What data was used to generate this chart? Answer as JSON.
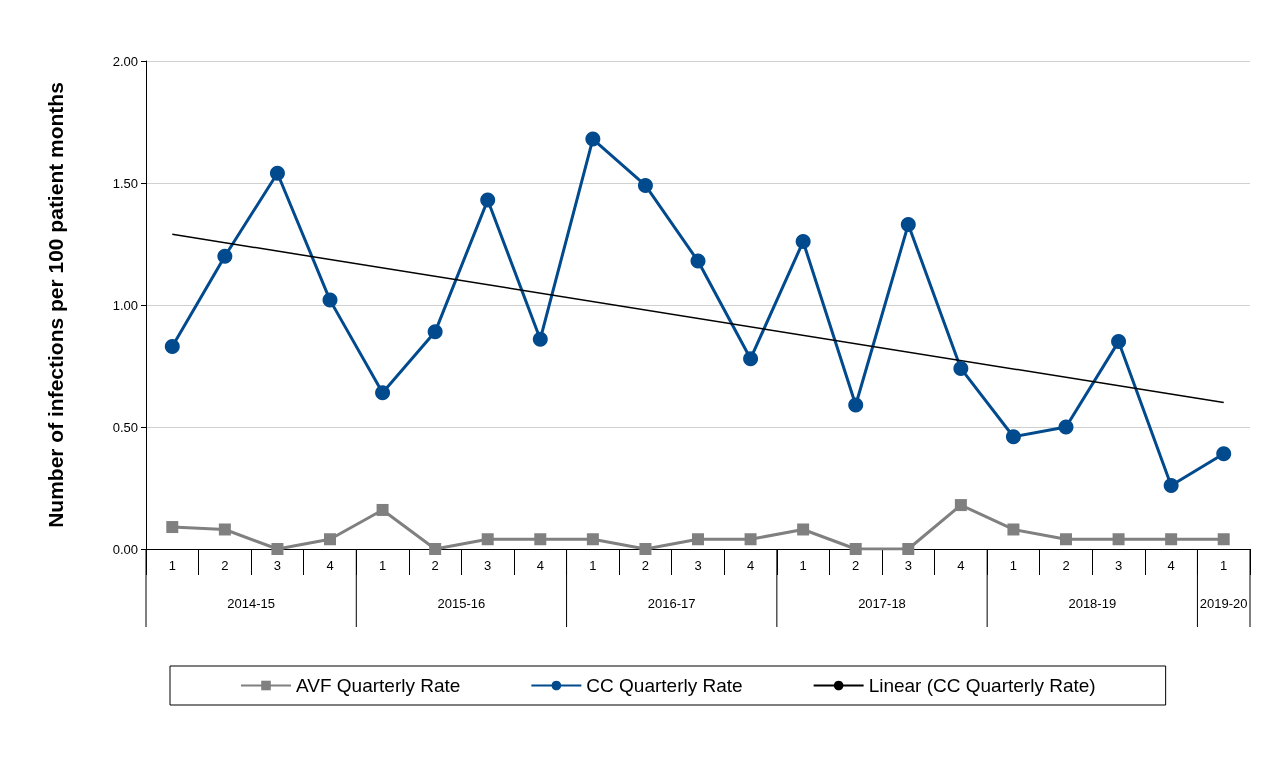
{
  "chart_data": {
    "type": "line",
    "ylabel": "Number of infections per 100 patient months",
    "categories": [
      "1",
      "2",
      "3",
      "4",
      "1",
      "2",
      "3",
      "4",
      "1",
      "2",
      "3",
      "4",
      "1",
      "2",
      "3",
      "4",
      "1",
      "2",
      "3",
      "4",
      "1"
    ],
    "annotations": [
      "2014-15",
      "2015-16",
      "2016-17",
      "2017-18",
      "2018-19",
      "2019-20"
    ],
    "series": [
      {
        "name": "AVF Quarterly Rate",
        "color": "#808080",
        "marker": "square",
        "values": [
          0.09,
          0.08,
          0.0,
          0.04,
          0.16,
          0.0,
          0.04,
          0.04,
          0.04,
          0.0,
          0.04,
          0.04,
          0.08,
          0.0,
          0.0,
          0.18,
          0.08,
          0.04,
          0.04,
          0.04,
          0.04
        ]
      },
      {
        "name": "CC Quarterly Rate",
        "color": "#004a8d",
        "marker": "circle",
        "values": [
          0.83,
          1.2,
          1.54,
          1.02,
          0.64,
          0.89,
          1.43,
          0.86,
          1.68,
          1.49,
          1.18,
          0.78,
          1.26,
          0.59,
          1.33,
          0.74,
          0.46,
          0.5,
          0.85,
          0.26,
          0.39
        ]
      },
      {
        "name": "Linear (CC Quarterly Rate)",
        "color": "#000000",
        "marker": "none",
        "values": [
          1.29,
          null,
          null,
          null,
          null,
          null,
          null,
          null,
          null,
          null,
          null,
          null,
          null,
          null,
          null,
          null,
          null,
          null,
          null,
          null,
          0.6
        ]
      }
    ],
    "ylim": [
      0,
      2
    ],
    "yticks": [
      {
        "value": 0,
        "label": "0.00"
      },
      {
        "value": 0.5,
        "label": "0.50"
      },
      {
        "value": 1,
        "label": "1.00"
      },
      {
        "value": 1.5,
        "label": "1.50"
      },
      {
        "value": 2,
        "label": "2.00"
      }
    ],
    "grid": "y",
    "legend": "bottom"
  }
}
